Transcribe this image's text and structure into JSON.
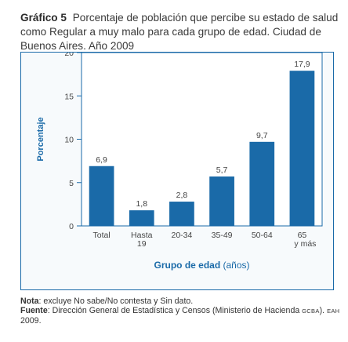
{
  "title": {
    "label": "Gráfico 5",
    "text": "Porcentaje de población que percibe su estado de salud como Regular a muy malo para cada grupo de edad. Ciudad de Buenos Aires. Año 2009"
  },
  "chart_data": {
    "type": "bar",
    "categories": [
      "Total",
      "Hasta 19",
      "20-34",
      "35-49",
      "50-64",
      "65 y más"
    ],
    "category_lines": [
      [
        "Total"
      ],
      [
        "Hasta",
        "19"
      ],
      [
        "20-34"
      ],
      [
        "35-49"
      ],
      [
        "50-64"
      ],
      [
        "65",
        "y más"
      ]
    ],
    "values": [
      6.9,
      1.8,
      2.8,
      5.7,
      9.7,
      17.9
    ],
    "value_labels": [
      "6,9",
      "1,8",
      "2,8",
      "5,7",
      "9,7",
      "17,9"
    ],
    "ylabel": "Porcentaje",
    "xlabel_main": "Grupo de edad",
    "xlabel_unit": "(años)",
    "ylim": [
      0,
      20
    ],
    "yticks": [
      0,
      5,
      10,
      15,
      20
    ],
    "grid": false,
    "bar_color": "#1a6aa8",
    "axis_color": "#1a6aa8"
  },
  "notes": {
    "note_label": "Nota",
    "note_text": ": excluye No sabe/No contesta y Sin dato.",
    "source_label": "Fuente",
    "source_text": ": Dirección General de Estadística y Censos (Ministerio de Hacienda ",
    "source_gcba": "GCBA",
    "source_mid": "). ",
    "source_eah": "EAH",
    "source_end": " 2009."
  }
}
